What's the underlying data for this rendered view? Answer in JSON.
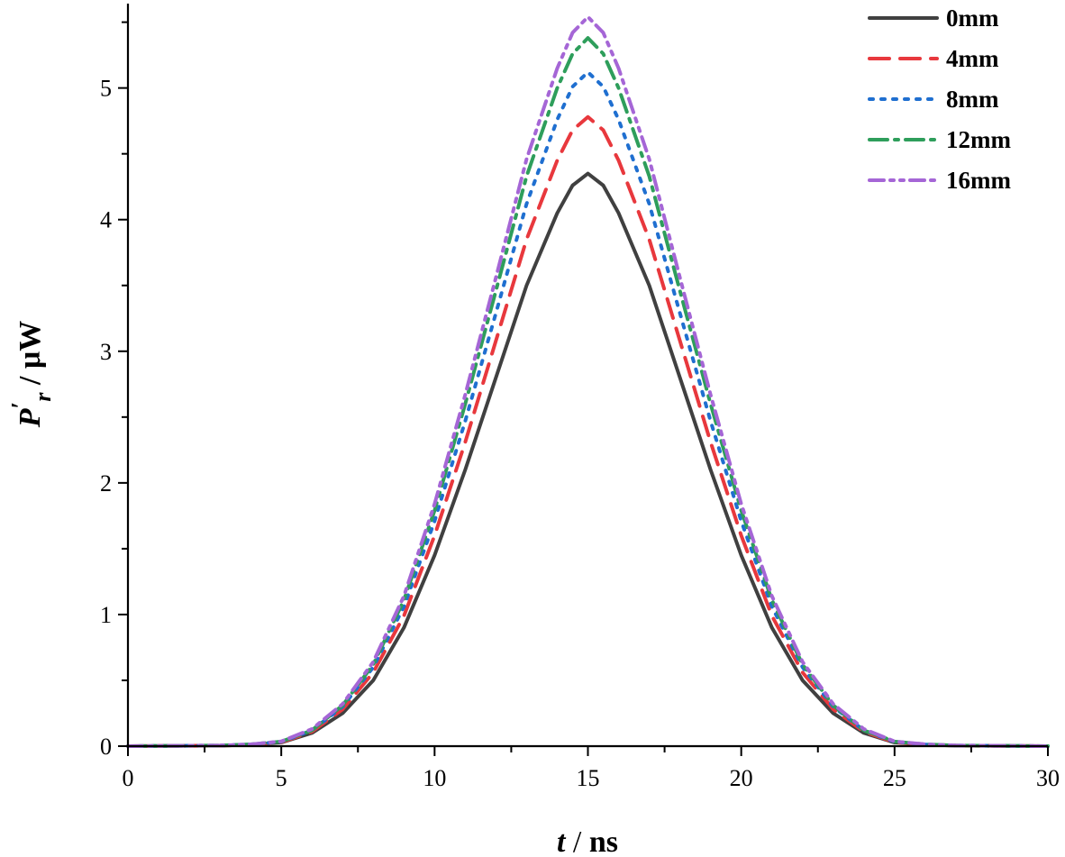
{
  "chart_data": {
    "type": "line",
    "xlabel": {
      "var": "t",
      "sep": " / ",
      "unit": "ns"
    },
    "ylabel": {
      "var": "P",
      "prime": "′",
      "sub": "r",
      "sep": " / ",
      "unit": "μW"
    },
    "xlim": [
      0,
      30
    ],
    "ylim": [
      0,
      5.6
    ],
    "xticks": [
      0,
      5,
      10,
      15,
      20,
      25,
      30
    ],
    "yticks": [
      0,
      1,
      2,
      3,
      4,
      5
    ],
    "grid": false,
    "legend_position": "top-right",
    "series": [
      {
        "name": "0mm",
        "color": "#404040",
        "dash": "solid",
        "x": [
          0,
          3,
          4,
          5,
          6,
          7,
          8,
          9,
          10,
          11,
          12,
          13,
          14,
          14.5,
          15,
          15.5,
          16,
          17,
          18,
          19,
          20,
          21,
          22,
          23,
          24,
          25,
          26,
          27,
          30
        ],
        "y": [
          0,
          0.004,
          0.011,
          0.028,
          0.1,
          0.25,
          0.5,
          0.9,
          1.45,
          2.1,
          2.8,
          3.5,
          4.05,
          4.26,
          4.35,
          4.26,
          4.05,
          3.5,
          2.8,
          2.1,
          1.45,
          0.9,
          0.5,
          0.25,
          0.1,
          0.028,
          0.011,
          0.004,
          0
        ]
      },
      {
        "name": "4mm",
        "color": "#e8383d",
        "dash": "dash",
        "x": [
          0,
          3,
          4,
          5,
          6,
          7,
          8,
          9,
          10,
          11,
          12,
          13,
          14,
          14.5,
          15,
          15.5,
          16,
          17,
          18,
          19,
          20,
          21,
          22,
          23,
          24,
          25,
          26,
          27,
          30
        ],
        "y": [
          0,
          0.004,
          0.012,
          0.03,
          0.11,
          0.28,
          0.56,
          0.99,
          1.6,
          2.31,
          3.08,
          3.85,
          4.45,
          4.68,
          4.78,
          4.68,
          4.45,
          3.85,
          3.08,
          2.31,
          1.6,
          0.99,
          0.56,
          0.28,
          0.11,
          0.03,
          0.012,
          0.004,
          0
        ]
      },
      {
        "name": "8mm",
        "color": "#1f6fd0",
        "dash": "dot",
        "x": [
          0,
          3,
          4,
          5,
          6,
          7,
          8,
          9,
          10,
          11,
          12,
          13,
          14,
          14.5,
          15,
          15.5,
          16,
          17,
          18,
          19,
          20,
          21,
          22,
          23,
          24,
          25,
          26,
          27,
          30
        ],
        "y": [
          0,
          0.005,
          0.013,
          0.033,
          0.12,
          0.3,
          0.6,
          1.06,
          1.71,
          2.47,
          3.29,
          4.12,
          4.76,
          5.01,
          5.12,
          5.01,
          4.76,
          4.12,
          3.29,
          2.47,
          1.71,
          1.06,
          0.6,
          0.3,
          0.12,
          0.033,
          0.013,
          0.005,
          0
        ]
      },
      {
        "name": "12mm",
        "color": "#2e9e5b",
        "dash": "dashdot",
        "x": [
          0,
          3,
          4,
          5,
          6,
          7,
          8,
          9,
          10,
          11,
          12,
          13,
          14,
          14.5,
          15,
          15.5,
          16,
          17,
          18,
          19,
          20,
          21,
          22,
          23,
          24,
          25,
          26,
          27,
          30
        ],
        "y": [
          0,
          0.005,
          0.014,
          0.035,
          0.12,
          0.31,
          0.62,
          1.11,
          1.79,
          2.6,
          3.46,
          4.33,
          5.0,
          5.26,
          5.38,
          5.26,
          5.0,
          4.33,
          3.46,
          2.6,
          1.79,
          1.11,
          0.62,
          0.31,
          0.12,
          0.035,
          0.014,
          0.005,
          0
        ]
      },
      {
        "name": "16mm",
        "color": "#a566d6",
        "dash": "dashdotdot",
        "x": [
          0,
          3,
          4,
          5,
          6,
          7,
          8,
          9,
          10,
          11,
          12,
          13,
          14,
          14.5,
          15,
          15.5,
          16,
          17,
          18,
          19,
          20,
          21,
          22,
          23,
          24,
          25,
          26,
          27,
          30
        ],
        "y": [
          0,
          0.005,
          0.014,
          0.036,
          0.13,
          0.32,
          0.64,
          1.14,
          1.84,
          2.67,
          3.56,
          4.46,
          5.15,
          5.42,
          5.54,
          5.42,
          5.15,
          4.46,
          3.56,
          2.67,
          1.84,
          1.14,
          0.64,
          0.32,
          0.13,
          0.036,
          0.014,
          0.005,
          0
        ]
      }
    ]
  }
}
